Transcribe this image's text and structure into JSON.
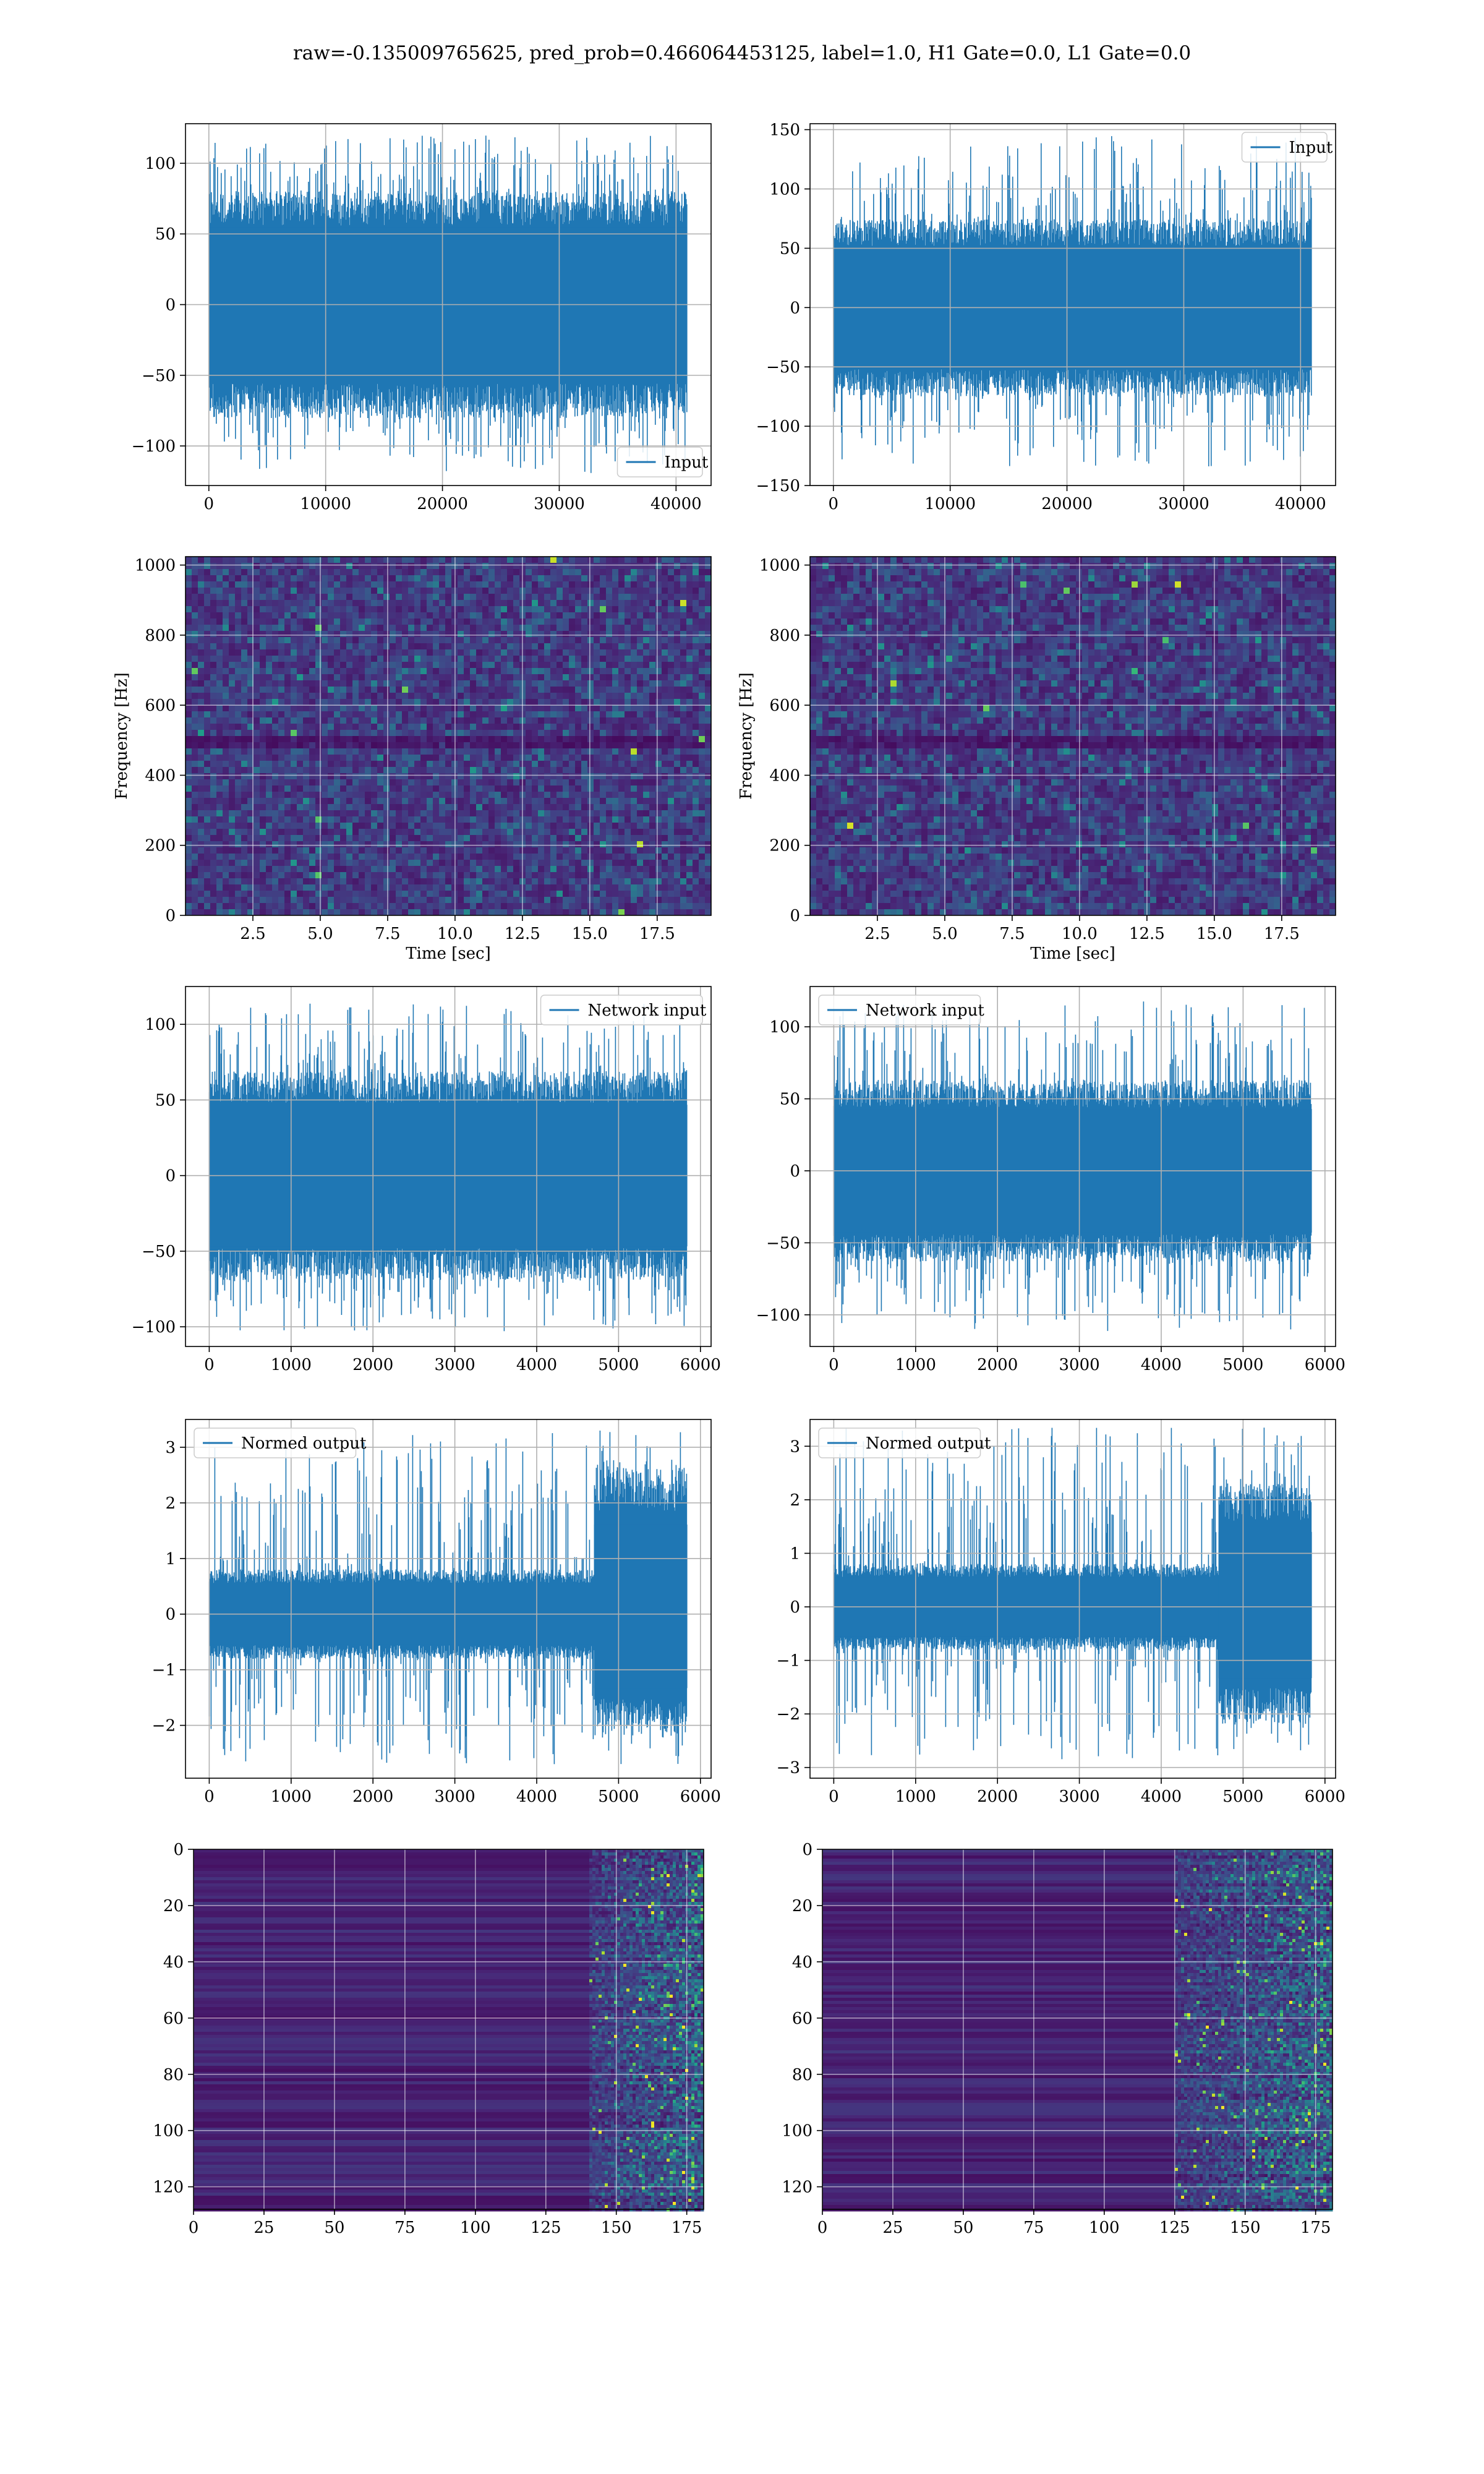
{
  "figure": {
    "title": "raw=-0.135009765625, pred_prob=0.466064453125, label=1.0, H1 Gate=0.0, L1 Gate=0.0",
    "colors": {
      "series": "#1f77b4",
      "grid": "#b0b0b0"
    }
  },
  "chart_data": [
    {
      "id": "h1-input",
      "type": "line",
      "title": "",
      "xlabel": "",
      "ylabel": "",
      "xlim": [
        -2000,
        43000
      ],
      "ylim": [
        -128,
        128
      ],
      "xticks": [
        0,
        10000,
        20000,
        30000,
        40000
      ],
      "yticks": [
        -100,
        -50,
        0,
        50,
        100
      ],
      "xtick_labels": [
        "0",
        "10000",
        "20000",
        "30000",
        "40000"
      ],
      "ytick_labels": [
        "−100",
        "−50",
        "0",
        "50",
        "100"
      ],
      "legend": {
        "label": "Input",
        "loc": "lower-right"
      },
      "series": [
        {
          "name": "Input",
          "x_range": [
            0,
            40960
          ],
          "envelope": [
            -120,
            120
          ],
          "band": [
            -70,
            70
          ],
          "points": 40960
        }
      ],
      "grid": true
    },
    {
      "id": "l1-input",
      "type": "line",
      "title": "",
      "xlabel": "",
      "ylabel": "",
      "xlim": [
        -2000,
        43000
      ],
      "ylim": [
        -150,
        155
      ],
      "xticks": [
        0,
        10000,
        20000,
        30000,
        40000
      ],
      "yticks": [
        -150,
        -100,
        -50,
        0,
        50,
        100,
        150
      ],
      "xtick_labels": [
        "0",
        "10000",
        "20000",
        "30000",
        "40000"
      ],
      "ytick_labels": [
        "−150",
        "−100",
        "−50",
        "0",
        "50",
        "100",
        "150"
      ],
      "legend": {
        "label": "Input",
        "loc": "upper-right"
      },
      "series": [
        {
          "name": "Input",
          "x_range": [
            0,
            40960
          ],
          "envelope": [
            -135,
            145
          ],
          "band": [
            -65,
            65
          ],
          "points": 40960
        }
      ],
      "grid": true
    },
    {
      "id": "h1-spectrogram",
      "type": "heatmap",
      "title": "",
      "xlabel": "Time [sec]",
      "ylabel": "Frequency [Hz]",
      "xlim": [
        0,
        19.5
      ],
      "ylim": [
        0,
        1024
      ],
      "xticks": [
        2.5,
        5.0,
        7.5,
        10.0,
        12.5,
        15.0,
        17.5
      ],
      "yticks": [
        0,
        200,
        400,
        600,
        800,
        1000
      ],
      "xtick_labels": [
        "2.5",
        "5.0",
        "7.5",
        "10.0",
        "12.5",
        "15.0",
        "17.5"
      ],
      "ytick_labels": [
        "0",
        "200",
        "400",
        "600",
        "800",
        "1000"
      ],
      "colormap": "viridis",
      "grid": true
    },
    {
      "id": "l1-spectrogram",
      "type": "heatmap",
      "title": "",
      "xlabel": "Time [sec]",
      "ylabel": "Frequency [Hz]",
      "xlim": [
        0,
        19.5
      ],
      "ylim": [
        0,
        1024
      ],
      "xticks": [
        2.5,
        5.0,
        7.5,
        10.0,
        12.5,
        15.0,
        17.5
      ],
      "yticks": [
        0,
        200,
        400,
        600,
        800,
        1000
      ],
      "xtick_labels": [
        "2.5",
        "5.0",
        "7.5",
        "10.0",
        "12.5",
        "15.0",
        "17.5"
      ],
      "ytick_labels": [
        "0",
        "200",
        "400",
        "600",
        "800",
        "1000"
      ],
      "colormap": "viridis",
      "grid": true
    },
    {
      "id": "h1-network-input",
      "type": "line",
      "title": "",
      "xlabel": "",
      "ylabel": "",
      "xlim": [
        -290,
        6130
      ],
      "ylim": [
        -113,
        125
      ],
      "xticks": [
        0,
        1000,
        2000,
        3000,
        4000,
        5000,
        6000
      ],
      "yticks": [
        -100,
        -50,
        0,
        50,
        100
      ],
      "xtick_labels": [
        "0",
        "1000",
        "2000",
        "3000",
        "4000",
        "5000",
        "6000"
      ],
      "ytick_labels": [
        "−100",
        "−50",
        "0",
        "50",
        "100"
      ],
      "legend": {
        "label": "Network input",
        "loc": "upper-right"
      },
      "series": [
        {
          "name": "Network input",
          "x_range": [
            0,
            5840
          ],
          "envelope": [
            -103,
            115
          ],
          "band": [
            -60,
            60
          ],
          "points": 5840
        }
      ],
      "grid": true
    },
    {
      "id": "l1-network-input",
      "type": "line",
      "title": "",
      "xlabel": "",
      "ylabel": "",
      "xlim": [
        -290,
        6130
      ],
      "ylim": [
        -122,
        128
      ],
      "xticks": [
        0,
        1000,
        2000,
        3000,
        4000,
        5000,
        6000
      ],
      "yticks": [
        -100,
        -50,
        0,
        50,
        100
      ],
      "xtick_labels": [
        "0",
        "1000",
        "2000",
        "3000",
        "4000",
        "5000",
        "6000"
      ],
      "ytick_labels": [
        "−100",
        "−50",
        "0",
        "50",
        "100"
      ],
      "legend": {
        "label": "Network input",
        "loc": "upper-left"
      },
      "series": [
        {
          "name": "Network input",
          "x_range": [
            0,
            5840
          ],
          "envelope": [
            -112,
            118
          ],
          "band": [
            -55,
            55
          ],
          "points": 5840
        }
      ],
      "grid": true
    },
    {
      "id": "h1-normed-output",
      "type": "line",
      "title": "",
      "xlabel": "",
      "ylabel": "",
      "xlim": [
        -290,
        6130
      ],
      "ylim": [
        -2.95,
        3.5
      ],
      "xticks": [
        0,
        1000,
        2000,
        3000,
        4000,
        5000,
        6000
      ],
      "yticks": [
        -2,
        -1,
        0,
        1,
        2,
        3
      ],
      "xtick_labels": [
        "0",
        "1000",
        "2000",
        "3000",
        "4000",
        "5000",
        "6000"
      ],
      "ytick_labels": [
        "−2",
        "−1",
        "0",
        "1",
        "2",
        "3"
      ],
      "legend": {
        "label": "Normed output",
        "loc": "upper-left"
      },
      "series": [
        {
          "name": "Normed output",
          "x_range": [
            0,
            5840
          ],
          "envelope": [
            -2.7,
            3.3
          ],
          "band": [
            -0.7,
            0.7
          ],
          "burst_range": [
            4700,
            5840
          ],
          "burst_band": [
            -1.9,
            2.3
          ],
          "points": 5840
        }
      ],
      "grid": true
    },
    {
      "id": "l1-normed-output",
      "type": "line",
      "title": "",
      "xlabel": "",
      "ylabel": "",
      "xlim": [
        -290,
        6130
      ],
      "ylim": [
        -3.2,
        3.5
      ],
      "xticks": [
        0,
        1000,
        2000,
        3000,
        4000,
        5000,
        6000
      ],
      "yticks": [
        -3,
        -2,
        -1,
        0,
        1,
        2,
        3
      ],
      "xtick_labels": [
        "0",
        "1000",
        "2000",
        "3000",
        "4000",
        "5000",
        "6000"
      ],
      "ytick_labels": [
        "−3",
        "−2",
        "−1",
        "0",
        "1",
        "2",
        "3"
      ],
      "legend": {
        "label": "Normed output",
        "loc": "upper-left"
      },
      "series": [
        {
          "name": "Normed output",
          "x_range": [
            0,
            5840
          ],
          "envelope": [
            -2.9,
            3.4
          ],
          "band": [
            -0.7,
            0.7
          ],
          "burst_range": [
            4700,
            5840
          ],
          "burst_band": [
            -1.9,
            2.0
          ],
          "points": 5840
        }
      ],
      "grid": true
    },
    {
      "id": "h1-feature-map",
      "type": "heatmap",
      "title": "",
      "xlabel": "",
      "ylabel": "",
      "xlim": [
        0,
        181
      ],
      "ylim": [
        128,
        0
      ],
      "xticks": [
        0,
        25,
        50,
        75,
        100,
        125,
        150,
        175
      ],
      "yticks": [
        0,
        20,
        40,
        60,
        80,
        100,
        120
      ],
      "xtick_labels": [
        "0",
        "25",
        "50",
        "75",
        "100",
        "125",
        "150",
        "175"
      ],
      "ytick_labels": [
        "0",
        "20",
        "40",
        "60",
        "80",
        "100",
        "120"
      ],
      "colormap": "viridis",
      "active_from": 140,
      "grid": true
    },
    {
      "id": "l1-feature-map",
      "type": "heatmap",
      "title": "",
      "xlabel": "",
      "ylabel": "",
      "xlim": [
        0,
        181
      ],
      "ylim": [
        128,
        0
      ],
      "xticks": [
        0,
        25,
        50,
        75,
        100,
        125,
        150,
        175
      ],
      "yticks": [
        0,
        20,
        40,
        60,
        80,
        100,
        120
      ],
      "xtick_labels": [
        "0",
        "25",
        "50",
        "75",
        "100",
        "125",
        "150",
        "175"
      ],
      "ytick_labels": [
        "0",
        "20",
        "40",
        "60",
        "80",
        "100",
        "120"
      ],
      "colormap": "viridis",
      "active_from": 125,
      "grid": true
    }
  ]
}
